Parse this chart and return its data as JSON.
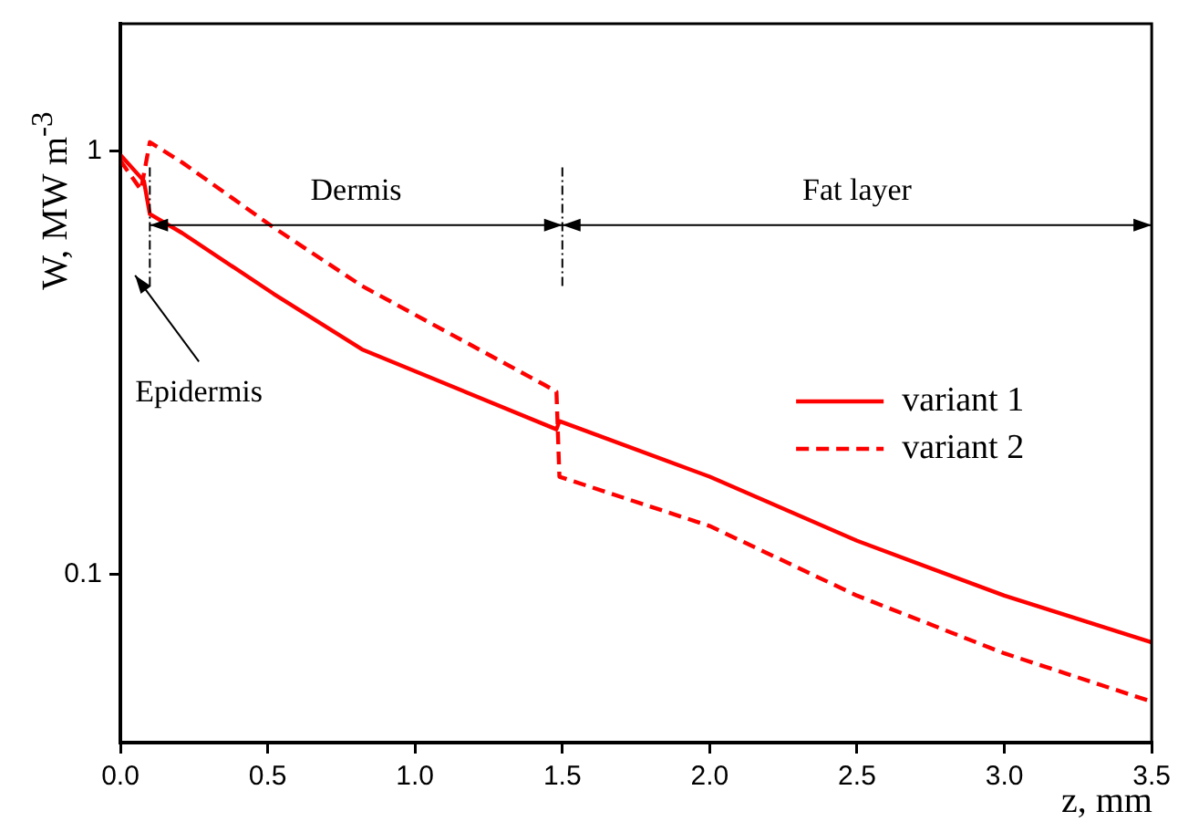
{
  "chart_data": {
    "type": "line",
    "xlabel": "z, mm",
    "ylabel": "W, MW m$^{-3}$",
    "log": "y",
    "xlim": [
      0,
      3.5
    ],
    "ylim": [
      0.04,
      2
    ],
    "xticks": [
      {
        "value": 0,
        "label": "0.0"
      },
      0.5,
      {
        "value": 1,
        "label": "1.0"
      },
      1.5,
      {
        "value": 2,
        "label": "2.0"
      },
      2.5,
      {
        "value": 3,
        "label": "3.0"
      },
      3.5
    ],
    "yticks": [
      0.1,
      1
    ],
    "grid": false,
    "legend": "right",
    "marker": "none",
    "series": [
      {
        "name": "variant 1",
        "color": "#ff0000",
        "line_style": "solid",
        "x": [
          0,
          0.08,
          0.1,
          0.21,
          0.52,
          0.82,
          1.48,
          1.49,
          2.0,
          2.5,
          3.0,
          3.5
        ],
        "values": [
          0.98,
          0.85,
          0.71,
          0.64,
          0.46,
          0.34,
          0.22,
          0.23,
          0.17,
          0.12,
          0.089,
          0.069
        ]
      },
      {
        "name": "variant 2",
        "color": "#ff0000",
        "line_style": "dashed",
        "x": [
          0,
          0.07,
          0.1,
          0.21,
          0.52,
          0.82,
          1.44,
          1.48,
          1.49,
          2.0,
          2.5,
          3.0,
          3.5
        ],
        "values": [
          0.95,
          0.81,
          1.05,
          0.94,
          0.66,
          0.48,
          0.28,
          0.27,
          0.17,
          0.13,
          0.089,
          0.065,
          0.05
        ]
      }
    ],
    "ref_lines": [
      {
        "axis": "x",
        "value": 0.1
      },
      {
        "axis": "x",
        "value": 1.5
      }
    ],
    "annotations": [
      "Epidermis",
      "Dermis",
      "Fat layer"
    ]
  }
}
